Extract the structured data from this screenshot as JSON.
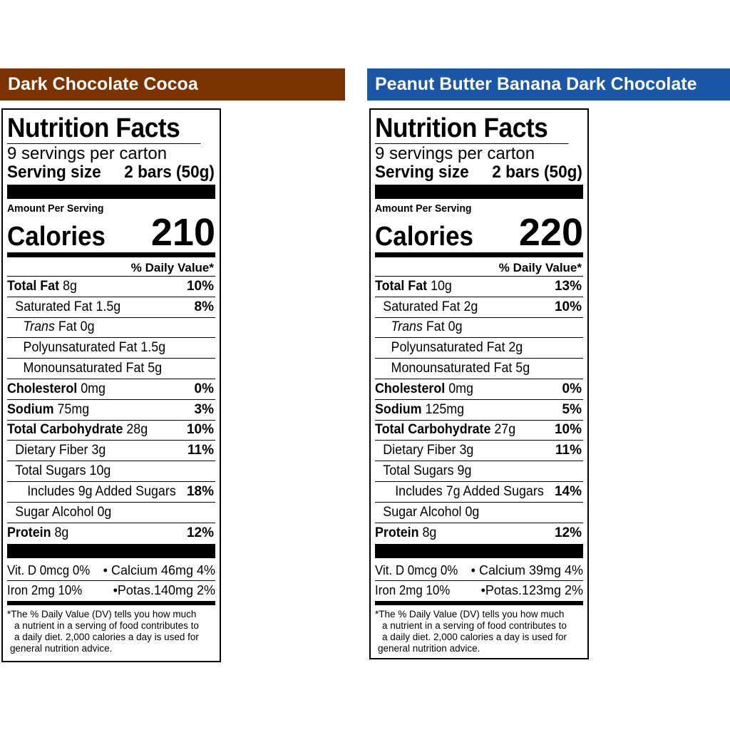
{
  "labels": [
    {
      "banner": "Dark Chocolate Cocoa",
      "banner_color": "#7a3300",
      "title": "Nutrition Facts",
      "servings": "9 servings per carton",
      "serving_size_label": "Serving size",
      "serving_size_value": "2 bars (50g)",
      "amount_per_serving": "Amount Per Serving",
      "calories_label": "Calories",
      "calories": "210",
      "dv_header": "% Daily Value*",
      "rows": {
        "total_fat": {
          "label": "Total Fat",
          "amount": "8g",
          "dv": "10%"
        },
        "saturated_fat": {
          "label": "Saturated Fat",
          "amount": "1.5g",
          "dv": "8%"
        },
        "trans_fat": {
          "label_italic": "Trans",
          "label": "Fat",
          "amount": "0g"
        },
        "poly_fat": {
          "label": "Polyunsaturated Fat",
          "amount": "1.5g"
        },
        "mono_fat": {
          "label": "Monounsaturated Fat",
          "amount": "5g"
        },
        "cholesterol": {
          "label": "Cholesterol",
          "amount": "0mg",
          "dv": "0%"
        },
        "sodium": {
          "label": "Sodium",
          "amount": "75mg",
          "dv": "3%"
        },
        "total_carb": {
          "label": "Total Carbohydrate",
          "amount": "28g",
          "dv": "10%"
        },
        "fiber": {
          "label": "Dietary Fiber",
          "amount": "3g",
          "dv": "11%"
        },
        "total_sugars": {
          "label": "Total Sugars",
          "amount": "10g"
        },
        "added_sugars": {
          "prefix": "Includes",
          "amount": "9g",
          "label": "Added Sugars",
          "dv": "18%"
        },
        "sugar_alcohol": {
          "label": "Sugar Alcohol",
          "amount": "0g"
        },
        "protein": {
          "label": "Protein",
          "amount": "8g",
          "dv": "12%"
        }
      },
      "vitamins": {
        "row1_left": "Vit. D 0mcg 0%",
        "row1_right": "• Calcium 46mg 4%",
        "row2_left": "Iron 2mg 10%",
        "row2_right": "•Potas.140mg 2%"
      },
      "footnote": [
        "*The % Daily Value (DV) tells you how much",
        "a nutrient in a serving of food contributes to",
        "a daily diet. 2,000 calories a day is used for",
        "general nutrition advice."
      ]
    },
    {
      "banner": "Peanut Butter Banana Dark Chocolate",
      "banner_color": "#1c56a6",
      "title": "Nutrition Facts",
      "servings": "9 servings per carton",
      "serving_size_label": "Serving size",
      "serving_size_value": "2 bars (50g)",
      "amount_per_serving": "Amount Per Serving",
      "calories_label": "Calories",
      "calories": "220",
      "dv_header": "% Daily Value*",
      "rows": {
        "total_fat": {
          "label": "Total Fat",
          "amount": "10g",
          "dv": "13%"
        },
        "saturated_fat": {
          "label": "Saturated Fat",
          "amount": "2g",
          "dv": "10%"
        },
        "trans_fat": {
          "label_italic": "Trans",
          "label": "Fat",
          "amount": "0g"
        },
        "poly_fat": {
          "label": "Polyunsaturated Fat",
          "amount": "2g"
        },
        "mono_fat": {
          "label": "Monounsaturated Fat",
          "amount": "5g"
        },
        "cholesterol": {
          "label": "Cholesterol",
          "amount": "0mg",
          "dv": "0%"
        },
        "sodium": {
          "label": "Sodium",
          "amount": "125mg",
          "dv": "5%"
        },
        "total_carb": {
          "label": "Total Carbohydrate",
          "amount": "27g",
          "dv": "10%"
        },
        "fiber": {
          "label": "Dietary Fiber",
          "amount": "3g",
          "dv": "11%"
        },
        "total_sugars": {
          "label": "Total Sugars",
          "amount": "9g"
        },
        "added_sugars": {
          "prefix": "Includes",
          "amount": "7g",
          "label": "Added Sugars",
          "dv": "14%"
        },
        "sugar_alcohol": {
          "label": "Sugar Alcohol",
          "amount": "0g"
        },
        "protein": {
          "label": "Protein",
          "amount": "8g",
          "dv": "12%"
        }
      },
      "vitamins": {
        "row1_left": "Vit. D 0mcg 0%",
        "row1_right": "• Calcium 39mg 4%",
        "row2_left": "Iron 2mg 10%",
        "row2_right": "•Potas.123mg 2%"
      },
      "footnote": [
        "*The % Daily Value (DV) tells you how much",
        "a nutrient in a serving of food contributes to",
        "a daily diet. 2,000 calories a day is used for",
        "general nutrition advice."
      ]
    }
  ]
}
